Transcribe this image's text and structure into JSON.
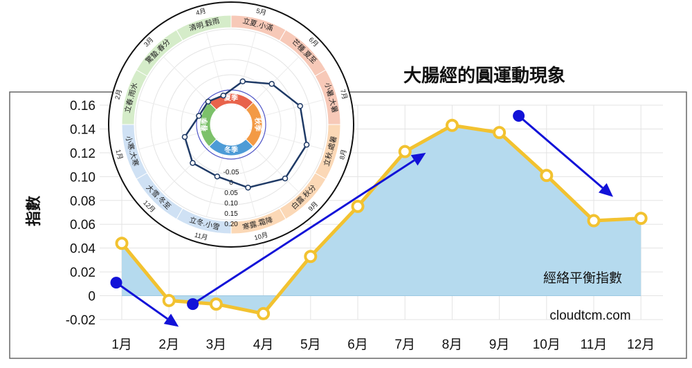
{
  "chart_data": [
    {
      "type": "area",
      "title": "大腸經的圓運動現象",
      "ylabel": "指數",
      "series_label": "經絡平衡指數",
      "watermark": "cloudtcm.com",
      "categories": [
        "1月",
        "2月",
        "3月",
        "4月",
        "5月",
        "6月",
        "7月",
        "8月",
        "9月",
        "10月",
        "11月",
        "12月"
      ],
      "series": [
        {
          "name": "經絡平衡指數",
          "values": [
            0.044,
            -0.004,
            -0.007,
            -0.015,
            0.033,
            0.075,
            0.121,
            0.143,
            0.137,
            0.101,
            0.063,
            0.065
          ]
        }
      ],
      "ylim": [
        -0.02,
        0.16
      ],
      "yticks": [
        -0.02,
        0,
        0.02,
        0.04,
        0.06,
        0.08,
        0.1,
        0.12,
        0.14,
        0.16
      ],
      "ytick_labels": [
        "-0.02",
        "0",
        "0.02",
        "0.04",
        "0.06",
        "0.08",
        "0.10",
        "0.12",
        "0.14",
        "0.16"
      ],
      "trend_arrows": [
        {
          "from": [
            "1月",
            0.011
          ],
          "to": [
            "2月",
            -0.026
          ]
        },
        {
          "from": [
            "4月",
            -0.007
          ],
          "to": [
            "8月",
            0.12
          ]
        },
        {
          "from": [
            "9月",
            0.151
          ],
          "to": [
            "11月",
            0.083
          ]
        }
      ],
      "grid": true,
      "colors": {
        "line": "#f2c230",
        "area": "#b5daee",
        "marker_fill": "#ffffff",
        "arrow": "#1212d8",
        "grid": "#e3e3e3"
      }
    },
    {
      "type": "radar",
      "categories": [
        "1月",
        "2月",
        "3月",
        "4月",
        "5月",
        "6月",
        "7月",
        "8月",
        "9月",
        "10月",
        "11月",
        "12月"
      ],
      "series": [
        {
          "name": "經絡平衡指數",
          "values": [
            0.044,
            -0.004,
            -0.007,
            -0.015,
            0.033,
            0.075,
            0.121,
            0.143,
            0.137,
            0.101,
            0.063,
            0.065
          ]
        }
      ],
      "rlim": [
        -0.05,
        0.2
      ],
      "rticks": [
        "-0.05",
        "0",
        "0.05",
        "0.10",
        "0.15",
        "0.20"
      ],
      "solar_terms": [
        "小寒.大寒",
        "立春.雨水",
        "驚蟄.春分",
        "清明.穀雨",
        "立夏.小滿",
        "芒種.夏至",
        "小暑.大暑",
        "立秋.處暑",
        "白露.秋分",
        "寒露.霜降",
        "立冬.小雪",
        "大雪.冬至"
      ],
      "seasons": [
        "春季",
        "夏季",
        "秋季",
        "冬季"
      ],
      "colors": {
        "line": "#1f3a66",
        "zero_circle": "#4f55c8",
        "spring": "#7cc16a",
        "summer": "#e8634b",
        "autumn": "#f39a45",
        "winter": "#4d9bd6",
        "spring_band": "#d5ecc9",
        "summer_band": "#f7c9b8",
        "autumn_band": "#fbd8b6",
        "winter_band": "#cfe1f4"
      }
    }
  ]
}
